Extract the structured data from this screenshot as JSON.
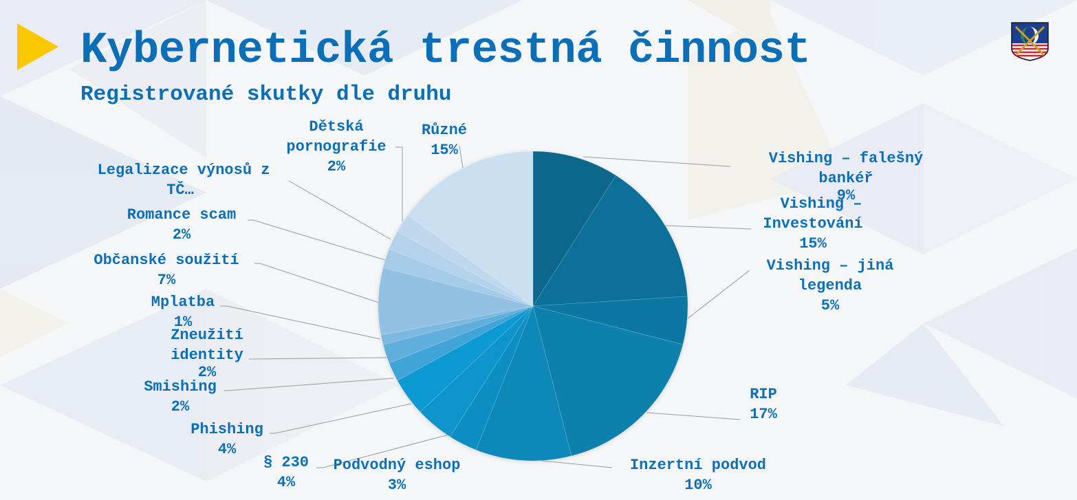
{
  "slide": {
    "title": "Kybernetická trestná činnost",
    "subtitle": "Registrované skutky dle druhu",
    "marker_color": "#fcc800",
    "text_color": "#0b6fb8",
    "emblem_icon": "coat-of-arms-emblem"
  },
  "chart_data": {
    "type": "pie",
    "title": "Registrované skutky dle druhu",
    "start_angle": "12 o'clock, clockwise",
    "unit": "%",
    "categories": [
      "Vishing – falešný bankéř",
      "Vishing – Investování",
      "Vishing – jiná legenda",
      "RIP",
      "Inzertní podvod",
      "Podvodný eshop",
      "§ 230",
      "Phishing",
      "Smishing",
      "Zneužití identity",
      "Mplatba",
      "Občanské soužití",
      "Romance scam",
      "Legalizace výnosů z TČ…",
      "Dětská pornografie",
      "Různé"
    ],
    "values": [
      9,
      15,
      5,
      17,
      10,
      3,
      4,
      4,
      2,
      2,
      1,
      7,
      2,
      2,
      2,
      15
    ],
    "colors": [
      "#07668c",
      "#086f98",
      "#0a77a3",
      "#0c80ad",
      "#0d88b8",
      "#0e8ec2",
      "#0f95cb",
      "#1099d2",
      "#3fa4d8",
      "#5eaedc",
      "#7bb8e0",
      "#93c1e3",
      "#a6cbe8",
      "#b4d2eb",
      "#bfd8ee",
      "#cadfef"
    ],
    "data_labels": [
      {
        "name": "Vishing – falešný bankéř",
        "lines": [
          "Vishing – falešný",
          "bankéř"
        ],
        "pct": "9%"
      },
      {
        "name": "Vishing – Investování",
        "lines": [
          "Vishing –",
          "Investování"
        ],
        "pct": "15%"
      },
      {
        "name": "Vishing – jiná legenda",
        "lines": [
          "Vishing – jiná",
          "legenda"
        ],
        "pct": "5%"
      },
      {
        "name": "RIP",
        "lines": [
          "RIP"
        ],
        "pct": "17%"
      },
      {
        "name": "Inzertní podvod",
        "lines": [
          "Inzertní podvod"
        ],
        "pct": "10%"
      },
      {
        "name": "Podvodný eshop",
        "lines": [
          "Podvodný eshop"
        ],
        "pct": "3%"
      },
      {
        "name": "§ 230",
        "lines": [
          "§ 230"
        ],
        "pct": "4%"
      },
      {
        "name": "Phishing",
        "lines": [
          "Phishing"
        ],
        "pct": "4%"
      },
      {
        "name": "Smishing",
        "lines": [
          "Smishing"
        ],
        "pct": "2%"
      },
      {
        "name": "Zneužití identity",
        "lines": [
          "Zneužití",
          "identity"
        ],
        "pct": "2%"
      },
      {
        "name": "Mplatba",
        "lines": [
          "Mplatba"
        ],
        "pct": "1%"
      },
      {
        "name": "Občanské soužití",
        "lines": [
          "Občanské soužití"
        ],
        "pct": "7%"
      },
      {
        "name": "Romance scam",
        "lines": [
          "Romance scam"
        ],
        "pct": "2%"
      },
      {
        "name": "Legalizace výnosů z TČ…",
        "lines": [
          "Legalizace výnosů z",
          "TČ…"
        ],
        "pct": ""
      },
      {
        "name": "Dětská pornografie",
        "lines": [
          "Dětská",
          "pornografie"
        ],
        "pct": "2%"
      },
      {
        "name": "Různé",
        "lines": [
          "Různé"
        ],
        "pct": "15%"
      }
    ],
    "legend": "none (data labels with leader lines)"
  }
}
